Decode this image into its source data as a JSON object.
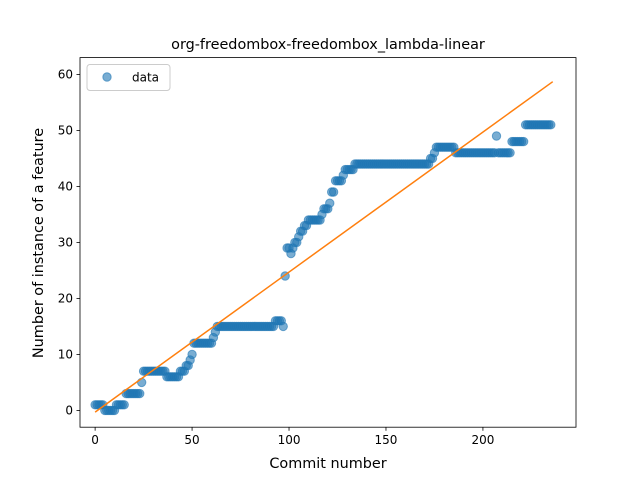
{
  "chart_data": {
    "type": "scatter",
    "title": "org-freedombox-freedombox_lambda-linear",
    "xlabel": "Commit number",
    "ylabel": "Number of instance of a feature",
    "xlim": [
      -7.8,
      248
    ],
    "ylim": [
      -3,
      63
    ],
    "xticks": [
      0,
      50,
      100,
      150,
      200
    ],
    "yticks": [
      0,
      10,
      20,
      30,
      40,
      50,
      60
    ],
    "grid": false,
    "legend": {
      "position": "top-left",
      "entries": [
        "data"
      ]
    },
    "colors": {
      "data": "#1f77b4",
      "fit": "#ff7f0e"
    },
    "series": [
      {
        "name": "data",
        "kind": "scatter",
        "points": [
          [
            0,
            1
          ],
          [
            1,
            1
          ],
          [
            2,
            1
          ],
          [
            3,
            1
          ],
          [
            4,
            1
          ],
          [
            5,
            0
          ],
          [
            6,
            0
          ],
          [
            7,
            0
          ],
          [
            8,
            0
          ],
          [
            9,
            0
          ],
          [
            10,
            0
          ],
          [
            11,
            1
          ],
          [
            12,
            1
          ],
          [
            13,
            1
          ],
          [
            14,
            1
          ],
          [
            15,
            1
          ],
          [
            16,
            3
          ],
          [
            17,
            3
          ],
          [
            18,
            3
          ],
          [
            19,
            3
          ],
          [
            20,
            3
          ],
          [
            21,
            3
          ],
          [
            22,
            3
          ],
          [
            23,
            3
          ],
          [
            24,
            5
          ],
          [
            25,
            7
          ],
          [
            26,
            7
          ],
          [
            27,
            7
          ],
          [
            28,
            7
          ],
          [
            29,
            7
          ],
          [
            30,
            7
          ],
          [
            31,
            7
          ],
          [
            32,
            7
          ],
          [
            33,
            7
          ],
          [
            34,
            7
          ],
          [
            35,
            7
          ],
          [
            36,
            7
          ],
          [
            37,
            6
          ],
          [
            38,
            6
          ],
          [
            39,
            6
          ],
          [
            40,
            6
          ],
          [
            41,
            6
          ],
          [
            42,
            6
          ],
          [
            43,
            6
          ],
          [
            44,
            7
          ],
          [
            45,
            7
          ],
          [
            46,
            7
          ],
          [
            47,
            8
          ],
          [
            48,
            8
          ],
          [
            49,
            9
          ],
          [
            50,
            10
          ],
          [
            51,
            12
          ],
          [
            52,
            12
          ],
          [
            53,
            12
          ],
          [
            54,
            12
          ],
          [
            55,
            12
          ],
          [
            56,
            12
          ],
          [
            57,
            12
          ],
          [
            58,
            12
          ],
          [
            59,
            12
          ],
          [
            60,
            12
          ],
          [
            61,
            13
          ],
          [
            62,
            14
          ],
          [
            63,
            15
          ],
          [
            64,
            15
          ],
          [
            65,
            15
          ],
          [
            66,
            15
          ],
          [
            67,
            15
          ],
          [
            68,
            15
          ],
          [
            69,
            15
          ],
          [
            70,
            15
          ],
          [
            71,
            15
          ],
          [
            72,
            15
          ],
          [
            73,
            15
          ],
          [
            74,
            15
          ],
          [
            75,
            15
          ],
          [
            76,
            15
          ],
          [
            77,
            15
          ],
          [
            78,
            15
          ],
          [
            79,
            15
          ],
          [
            80,
            15
          ],
          [
            81,
            15
          ],
          [
            82,
            15
          ],
          [
            83,
            15
          ],
          [
            84,
            15
          ],
          [
            85,
            15
          ],
          [
            86,
            15
          ],
          [
            87,
            15
          ],
          [
            88,
            15
          ],
          [
            89,
            15
          ],
          [
            90,
            15
          ],
          [
            91,
            15
          ],
          [
            92,
            15
          ],
          [
            93,
            16
          ],
          [
            94,
            16
          ],
          [
            95,
            16
          ],
          [
            96,
            16
          ],
          [
            97,
            15
          ],
          [
            98,
            24
          ],
          [
            99,
            29
          ],
          [
            100,
            29
          ],
          [
            101,
            28
          ],
          [
            102,
            29
          ],
          [
            103,
            30
          ],
          [
            104,
            30
          ],
          [
            105,
            31
          ],
          [
            106,
            32
          ],
          [
            107,
            32
          ],
          [
            108,
            33
          ],
          [
            109,
            33
          ],
          [
            110,
            34
          ],
          [
            111,
            34
          ],
          [
            112,
            34
          ],
          [
            113,
            34
          ],
          [
            114,
            34
          ],
          [
            115,
            34
          ],
          [
            116,
            34
          ],
          [
            117,
            35
          ],
          [
            118,
            36
          ],
          [
            119,
            36
          ],
          [
            120,
            36
          ],
          [
            121,
            37
          ],
          [
            122,
            39
          ],
          [
            123,
            39
          ],
          [
            124,
            41
          ],
          [
            125,
            41
          ],
          [
            126,
            41
          ],
          [
            127,
            41
          ],
          [
            128,
            42
          ],
          [
            129,
            43
          ],
          [
            130,
            43
          ],
          [
            131,
            43
          ],
          [
            132,
            43
          ],
          [
            133,
            43
          ],
          [
            134,
            44
          ],
          [
            135,
            44
          ],
          [
            136,
            44
          ],
          [
            137,
            44
          ],
          [
            138,
            44
          ],
          [
            139,
            44
          ],
          [
            140,
            44
          ],
          [
            141,
            44
          ],
          [
            142,
            44
          ],
          [
            143,
            44
          ],
          [
            144,
            44
          ],
          [
            145,
            44
          ],
          [
            146,
            44
          ],
          [
            147,
            44
          ],
          [
            148,
            44
          ],
          [
            149,
            44
          ],
          [
            150,
            44
          ],
          [
            151,
            44
          ],
          [
            152,
            44
          ],
          [
            153,
            44
          ],
          [
            154,
            44
          ],
          [
            155,
            44
          ],
          [
            156,
            44
          ],
          [
            157,
            44
          ],
          [
            158,
            44
          ],
          [
            159,
            44
          ],
          [
            160,
            44
          ],
          [
            161,
            44
          ],
          [
            162,
            44
          ],
          [
            163,
            44
          ],
          [
            164,
            44
          ],
          [
            165,
            44
          ],
          [
            166,
            44
          ],
          [
            167,
            44
          ],
          [
            168,
            44
          ],
          [
            169,
            44
          ],
          [
            170,
            44
          ],
          [
            171,
            44
          ],
          [
            172,
            44
          ],
          [
            173,
            45
          ],
          [
            174,
            45
          ],
          [
            175,
            46
          ],
          [
            176,
            47
          ],
          [
            177,
            47
          ],
          [
            178,
            47
          ],
          [
            179,
            47
          ],
          [
            180,
            47
          ],
          [
            181,
            47
          ],
          [
            182,
            47
          ],
          [
            183,
            47
          ],
          [
            184,
            47
          ],
          [
            185,
            47
          ],
          [
            186,
            46
          ],
          [
            187,
            46
          ],
          [
            188,
            46
          ],
          [
            189,
            46
          ],
          [
            190,
            46
          ],
          [
            191,
            46
          ],
          [
            192,
            46
          ],
          [
            193,
            46
          ],
          [
            194,
            46
          ],
          [
            195,
            46
          ],
          [
            196,
            46
          ],
          [
            197,
            46
          ],
          [
            198,
            46
          ],
          [
            199,
            46
          ],
          [
            200,
            46
          ],
          [
            201,
            46
          ],
          [
            202,
            46
          ],
          [
            203,
            46
          ],
          [
            204,
            46
          ],
          [
            205,
            46
          ],
          [
            206,
            46
          ],
          [
            207,
            49
          ],
          [
            208,
            46
          ],
          [
            209,
            46
          ],
          [
            210,
            46
          ],
          [
            211,
            46
          ],
          [
            212,
            46
          ],
          [
            213,
            46
          ],
          [
            214,
            46
          ],
          [
            215,
            48
          ],
          [
            216,
            48
          ],
          [
            217,
            48
          ],
          [
            218,
            48
          ],
          [
            219,
            48
          ],
          [
            220,
            48
          ],
          [
            221,
            48
          ],
          [
            222,
            51
          ],
          [
            223,
            51
          ],
          [
            224,
            51
          ],
          [
            225,
            51
          ],
          [
            226,
            51
          ],
          [
            227,
            51
          ],
          [
            228,
            51
          ],
          [
            229,
            51
          ],
          [
            230,
            51
          ],
          [
            231,
            51
          ],
          [
            232,
            51
          ],
          [
            233,
            51
          ],
          [
            234,
            51
          ],
          [
            235,
            51
          ]
        ]
      },
      {
        "kind": "line",
        "points": [
          [
            0,
            -0.3
          ],
          [
            236,
            58.7
          ]
        ]
      }
    ]
  }
}
